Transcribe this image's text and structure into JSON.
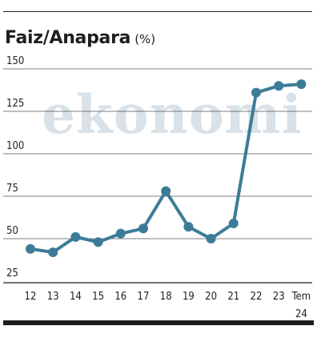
{
  "title": "Faiz/Anapara",
  "unit": "(%)",
  "watermark": "ekonomi",
  "colors": {
    "line": "#3d7c98",
    "grid": "#555555",
    "rule": "#1b1b1b",
    "watermark": "#b9ccd6"
  },
  "chart_data": {
    "type": "line",
    "title": "Faiz/Anapara (%)",
    "xlabel": "",
    "ylabel": "",
    "ylim": [
      25,
      150
    ],
    "yticks": [
      25,
      50,
      75,
      100,
      125,
      150
    ],
    "grid": true,
    "categories": [
      "12",
      "13",
      "14",
      "15",
      "16",
      "17",
      "18",
      "19",
      "20",
      "21",
      "22",
      "23",
      "Tem\n24"
    ],
    "series": [
      {
        "values": [
          44,
          42,
          51,
          48,
          53,
          56,
          78,
          57,
          50,
          59,
          136,
          140,
          141
        ]
      }
    ]
  }
}
